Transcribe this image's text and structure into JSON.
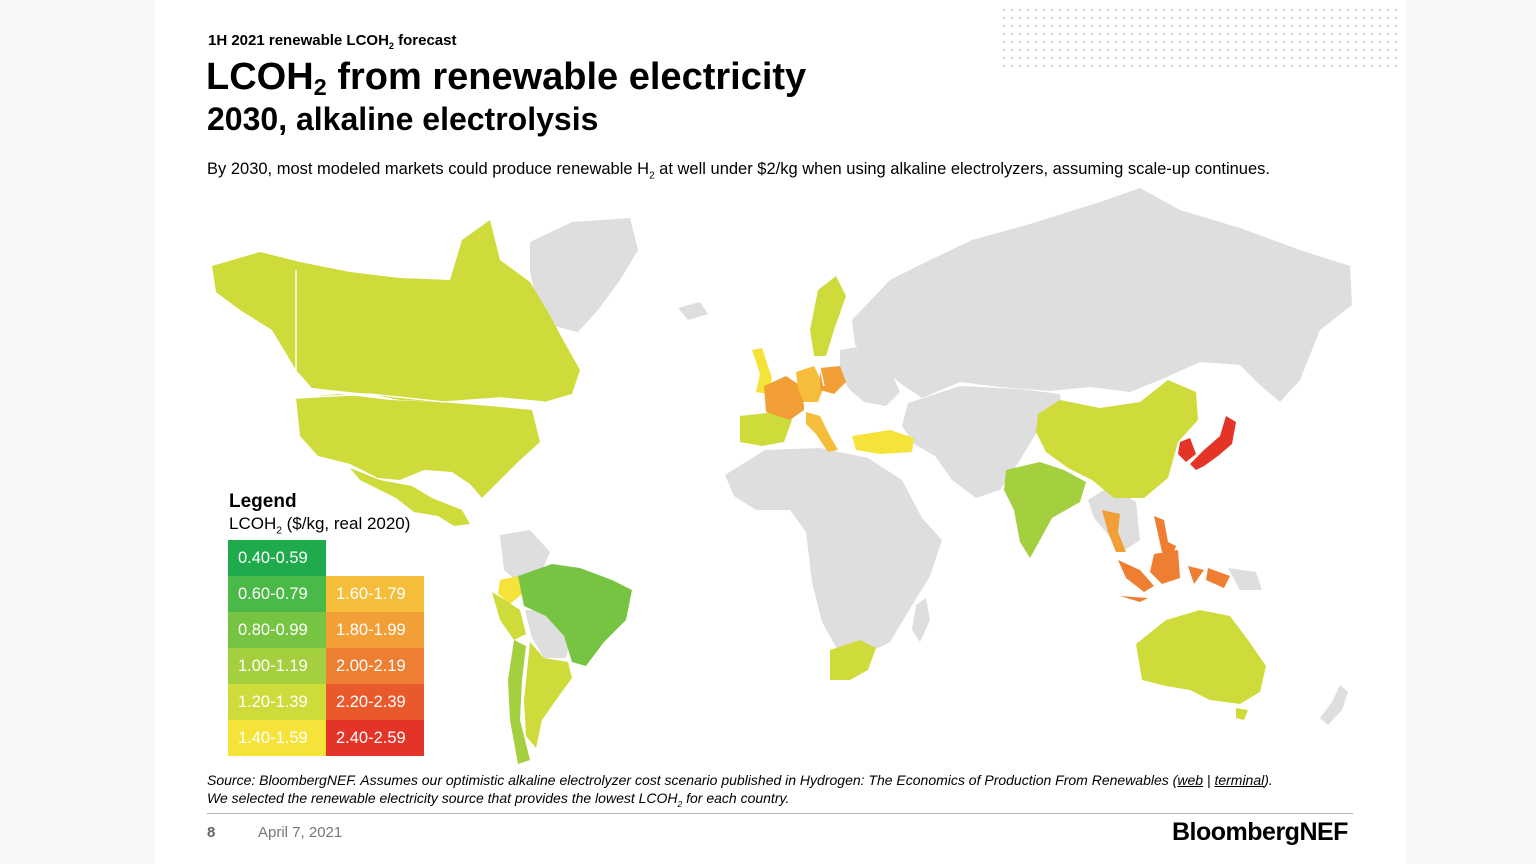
{
  "header": {
    "kicker_pre": "1H 2021 renewable LCOH",
    "kicker_sub": "2",
    "kicker_post": " forecast",
    "title_pre": "LCOH",
    "title_sub": "2",
    "title_post": " from renewable electricity",
    "subtitle": "2030, alkaline electrolysis",
    "lede_pre": "By 2030, most modeled markets could produce renewable H",
    "lede_sub": "2",
    "lede_post": " at well under $2/kg when using alkaline electrolyzers, assuming scale-up continues."
  },
  "legend": {
    "title": "Legend",
    "unit_pre": "LCOH",
    "unit_sub": "2",
    "unit_post": " ($/kg, real 2020)",
    "bins": [
      {
        "label": "0.40-0.59",
        "color": "#1fab4b"
      },
      {
        "label": "0.60-0.79",
        "color": "#4bb947"
      },
      {
        "label": "0.80-0.99",
        "color": "#77c443"
      },
      {
        "label": "1.00-1.19",
        "color": "#a4cf3f"
      },
      {
        "label": "1.20-1.39",
        "color": "#cfdb3b"
      },
      {
        "label": "1.40-1.59",
        "color": "#f5e33a"
      },
      {
        "label": "1.60-1.79",
        "color": "#f6bd3a"
      },
      {
        "label": "1.80-1.99",
        "color": "#f29f37"
      },
      {
        "label": "2.00-2.19",
        "color": "#ee7e31"
      },
      {
        "label": "2.20-2.39",
        "color": "#e9592c"
      },
      {
        "label": "2.40-2.59",
        "color": "#e43327"
      }
    ]
  },
  "map": {
    "no_data_color": "#dedede",
    "regions": [
      {
        "name": "Canada",
        "bin": "1.20-1.39"
      },
      {
        "name": "United States",
        "bin": "1.20-1.39"
      },
      {
        "name": "Mexico",
        "bin": "1.20-1.39"
      },
      {
        "name": "Brazil",
        "bin": "0.80-0.99"
      },
      {
        "name": "Chile",
        "bin": "1.00-1.19"
      },
      {
        "name": "Argentina",
        "bin": "1.20-1.39"
      },
      {
        "name": "Peru",
        "bin": "1.20-1.39"
      },
      {
        "name": "Colombia",
        "bin": "1.40-1.59"
      },
      {
        "name": "United Kingdom",
        "bin": "1.40-1.59"
      },
      {
        "name": "Sweden",
        "bin": "1.20-1.39"
      },
      {
        "name": "Spain",
        "bin": "1.20-1.39"
      },
      {
        "name": "France",
        "bin": "1.80-1.99"
      },
      {
        "name": "Germany",
        "bin": "1.60-1.79"
      },
      {
        "name": "Poland",
        "bin": "1.80-1.99"
      },
      {
        "name": "Italy",
        "bin": "1.60-1.79"
      },
      {
        "name": "Turkey",
        "bin": "1.40-1.59"
      },
      {
        "name": "India",
        "bin": "1.00-1.19"
      },
      {
        "name": "China",
        "bin": "1.20-1.39"
      },
      {
        "name": "Japan",
        "bin": "2.40-2.59"
      },
      {
        "name": "South Korea",
        "bin": "2.40-2.59"
      },
      {
        "name": "Thailand",
        "bin": "1.80-1.99"
      },
      {
        "name": "Indonesia",
        "bin": "2.00-2.19"
      },
      {
        "name": "Philippines",
        "bin": "2.00-2.19"
      },
      {
        "name": "Australia",
        "bin": "1.20-1.39"
      },
      {
        "name": "South Africa",
        "bin": "1.20-1.39"
      }
    ]
  },
  "footer": {
    "source_l1_pre": "Source: BloombergNEF. Assumes our optimistic alkaline electrolyzer cost scenario published in Hydrogen: The Economics of Production From Renewables (",
    "source_web": "web",
    "source_sep": " | ",
    "source_terminal": "terminal",
    "source_l1_post": ").",
    "source_l2_pre": "We selected the renewable electricity source that provides the lowest LCOH",
    "source_l2_sub": "2",
    "source_l2_post": " for each country.",
    "page_number": "8",
    "date": "April 7, 2021",
    "logo_a": "Bloomberg",
    "logo_b": "NEF"
  }
}
